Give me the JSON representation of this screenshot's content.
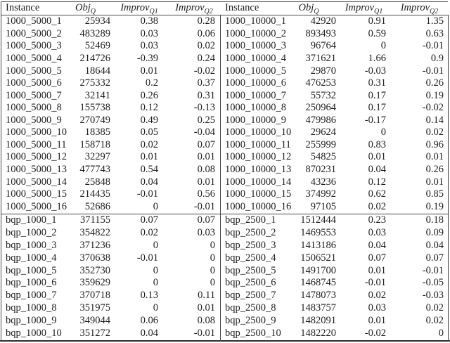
{
  "page": {
    "background": "#ffffff",
    "text_color": "#1d1d1d",
    "line_color": "#474747"
  },
  "table": {
    "columns": [
      {
        "key": "instance",
        "label": "Instance",
        "sub": "",
        "italic": false
      },
      {
        "key": "obj-q",
        "label": "Obj",
        "sub": "Q",
        "italic": true
      },
      {
        "key": "improv-q1",
        "label": "Improv",
        "sub": "Q1",
        "italic": true
      },
      {
        "key": "improv-q2",
        "label": "Improv",
        "sub": "Q2",
        "italic": true
      }
    ],
    "left_panel": {
      "groups": [
        {
          "rows": [
            [
              "1000_5000_1",
              "25934",
              "0.38",
              "0.28"
            ],
            [
              "1000_5000_2",
              "483289",
              "0.03",
              "0.06"
            ],
            [
              "1000_5000_3",
              "52469",
              "0.03",
              "0.02"
            ],
            [
              "1000_5000_4",
              "214726",
              "-0.39",
              "0.24"
            ],
            [
              "1000_5000_5",
              "18644",
              "0.01",
              "-0.02"
            ],
            [
              "1000_5000_6",
              "275332",
              "0.2",
              "0.37"
            ],
            [
              "1000_5000_7",
              "32141",
              "0.26",
              "0.31"
            ],
            [
              "1000_5000_8",
              "155738",
              "0.12",
              "-0.13"
            ],
            [
              "1000_5000_9",
              "270749",
              "0.49",
              "0.25"
            ],
            [
              "1000_5000_10",
              "18385",
              "0.05",
              "-0.04"
            ],
            [
              "1000_5000_11",
              "158718",
              "0.02",
              "0.07"
            ],
            [
              "1000_5000_12",
              "32297",
              "0.01",
              "0.01"
            ],
            [
              "1000_5000_13",
              "477743",
              "0.54",
              "0.08"
            ],
            [
              "1000_5000_14",
              "25848",
              "0.04",
              "0.01"
            ],
            [
              "1000_5000_15",
              "214435",
              "-0.01",
              "0.56"
            ],
            [
              "1000_5000_16",
              "52686",
              "0",
              "-0.01"
            ]
          ]
        },
        {
          "rows": [
            [
              "bqp_1000_1",
              "371155",
              "0.07",
              "0.07"
            ],
            [
              "bqp_1000_2",
              "354822",
              "0.02",
              "0.03"
            ],
            [
              "bqp_1000_3",
              "371236",
              "0",
              "0"
            ],
            [
              "bqp_1000_4",
              "370638",
              "-0.01",
              "0"
            ],
            [
              "bqp_1000_5",
              "352730",
              "0",
              "0"
            ],
            [
              "bqp_1000_6",
              "359629",
              "0",
              "0"
            ],
            [
              "bqp_1000_7",
              "370718",
              "0.13",
              "0.11"
            ],
            [
              "bqp_1000_8",
              "351975",
              "0",
              "0.01"
            ],
            [
              "bqp_1000_9",
              "349044",
              "0.06",
              "0.08"
            ],
            [
              "bqp_1000_10",
              "351272",
              "0.04",
              "-0.01"
            ]
          ]
        }
      ]
    },
    "right_panel": {
      "groups": [
        {
          "rows": [
            [
              "1000_10000_1",
              "42920",
              "0.91",
              "1.35"
            ],
            [
              "1000_10000_2",
              "893493",
              "0.59",
              "0.63"
            ],
            [
              "1000_10000_3",
              "96764",
              "0",
              "-0.01"
            ],
            [
              "1000_10000_4",
              "371621",
              "1.66",
              "0.9"
            ],
            [
              "1000_10000_5",
              "29870",
              "-0.03",
              "-0.01"
            ],
            [
              "1000_10000_6",
              "476253",
              "0.31",
              "0.26"
            ],
            [
              "1000_10000_7",
              "55732",
              "0.17",
              "0.19"
            ],
            [
              "1000_10000_8",
              "250964",
              "0.17",
              "-0.02"
            ],
            [
              "1000_10000_9",
              "479986",
              "-0.17",
              "0.14"
            ],
            [
              "1000_10000_10",
              "29624",
              "0",
              "0.02"
            ],
            [
              "1000_10000_11",
              "255999",
              "0.83",
              "0.96"
            ],
            [
              "1000_10000_12",
              "54825",
              "0.01",
              "0.01"
            ],
            [
              "1000_10000_13",
              "870231",
              "0.04",
              "0.26"
            ],
            [
              "1000_10000_14",
              "43236",
              "0.12",
              "0.01"
            ],
            [
              "1000_10000_15",
              "374992",
              "0.62",
              "0.85"
            ],
            [
              "1000_10000_16",
              "97105",
              "0.02",
              "0.19"
            ]
          ]
        },
        {
          "rows": [
            [
              "bqp_2500_1",
              "1512444",
              "0.23",
              "0.18"
            ],
            [
              "bqp_2500_2",
              "1469553",
              "0.03",
              "0.09"
            ],
            [
              "bqp_2500_3",
              "1413186",
              "0.04",
              "0.04"
            ],
            [
              "bqp_2500_4",
              "1506521",
              "0.07",
              "0.07"
            ],
            [
              "bqp_2500_5",
              "1491700",
              "0.01",
              "-0.01"
            ],
            [
              "bqp_2500_6",
              "1468745",
              "-0.01",
              "-0.05"
            ],
            [
              "bqp_2500_7",
              "1478073",
              "0.02",
              "-0.03"
            ],
            [
              "bqp_2500_8",
              "1483757",
              "0.03",
              "0.02"
            ],
            [
              "bqp_2500_9",
              "1482091",
              "0.01",
              "0.02"
            ],
            [
              "bqp_2500_10",
              "1482220",
              "-0.02",
              "0"
            ]
          ]
        }
      ]
    }
  }
}
